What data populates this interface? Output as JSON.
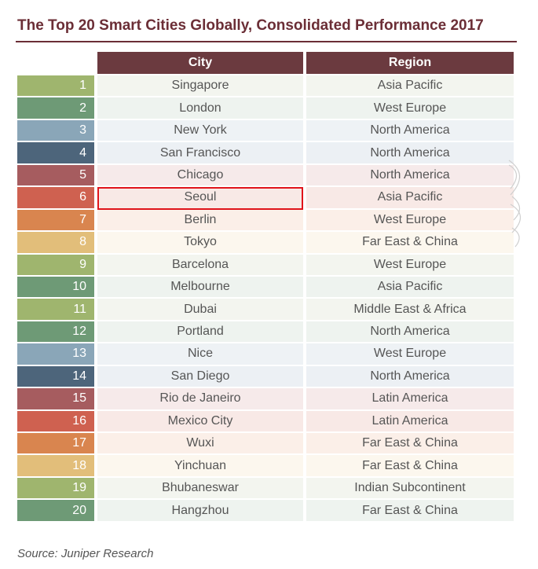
{
  "title": "The Top 20 Smart Cities Globally, Consolidated Performance 2017",
  "header": {
    "city": "City",
    "region": "Region"
  },
  "rows": [
    {
      "rank": "1",
      "city": "Singapore",
      "region": "Asia Pacific",
      "color": "#9fb56e",
      "bg": "#f3f5ef"
    },
    {
      "rank": "2",
      "city": "London",
      "region": "West Europe",
      "color": "#6e9a76",
      "bg": "#eef3ef"
    },
    {
      "rank": "3",
      "city": "New York",
      "region": "North America",
      "color": "#8aa6b8",
      "bg": "#eef2f5"
    },
    {
      "rank": "4",
      "city": "San Francisco",
      "region": "North America",
      "color": "#4d657b",
      "bg": "#ecf0f4"
    },
    {
      "rank": "5",
      "city": "Chicago",
      "region": "North America",
      "color": "#a65c5f",
      "bg": "#f6eaea"
    },
    {
      "rank": "6",
      "city": "Seoul",
      "region": "Asia Pacific",
      "color": "#cf6150",
      "bg": "#f8e9e6",
      "highlight": true
    },
    {
      "rank": "7",
      "city": "Berlin",
      "region": "West Europe",
      "color": "#d9854f",
      "bg": "#fbefe8"
    },
    {
      "rank": "8",
      "city": "Tokyo",
      "region": "Far East & China",
      "color": "#e2be7a",
      "bg": "#fcf7ee"
    },
    {
      "rank": "9",
      "city": "Barcelona",
      "region": "West Europe",
      "color": "#9fb56e",
      "bg": "#f3f5ef"
    },
    {
      "rank": "10",
      "city": "Melbourne",
      "region": "Asia Pacific",
      "color": "#6e9a76",
      "bg": "#eef3ef"
    },
    {
      "rank": "11",
      "city": "Dubai",
      "region": "Middle East & Africa",
      "color": "#9fb56e",
      "bg": "#f3f5ef"
    },
    {
      "rank": "12",
      "city": "Portland",
      "region": "North America",
      "color": "#6e9a76",
      "bg": "#eef3ef"
    },
    {
      "rank": "13",
      "city": "Nice",
      "region": "West Europe",
      "color": "#8aa6b8",
      "bg": "#eef2f5"
    },
    {
      "rank": "14",
      "city": "San Diego",
      "region": "North America",
      "color": "#4d657b",
      "bg": "#ecf0f4"
    },
    {
      "rank": "15",
      "city": "Rio de Janeiro",
      "region": "Latin America",
      "color": "#a65c5f",
      "bg": "#f6eaea"
    },
    {
      "rank": "16",
      "city": "Mexico City",
      "region": "Latin America",
      "color": "#cf6150",
      "bg": "#f8e9e6"
    },
    {
      "rank": "17",
      "city": "Wuxi",
      "region": "Far East & China",
      "color": "#d9854f",
      "bg": "#fbefe8"
    },
    {
      "rank": "18",
      "city": "Yinchuan",
      "region": "Far East & China",
      "color": "#e2be7a",
      "bg": "#fcf7ee"
    },
    {
      "rank": "19",
      "city": "Bhubaneswar",
      "region": "Indian Subcontinent",
      "color": "#9fb56e",
      "bg": "#f3f5ef"
    },
    {
      "rank": "20",
      "city": "Hangzhou",
      "region": "Far East & China",
      "color": "#6e9a76",
      "bg": "#eef3ef"
    }
  ],
  "source": "Source: Juniper Research",
  "colors": {
    "title": "#6b2e36",
    "header_bg": "#6b3a3f",
    "highlight_border": "#e0141b"
  }
}
